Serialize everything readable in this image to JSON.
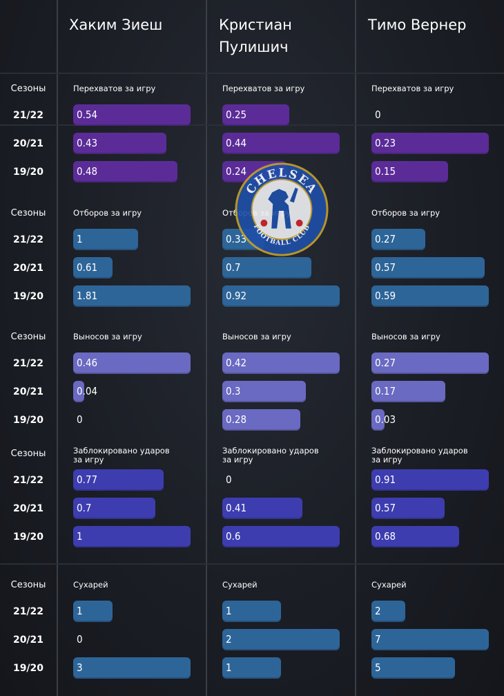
{
  "players": [
    {
      "name": "Хаким Зиеш"
    },
    {
      "name": "Кристиан\nПулишич"
    },
    {
      "name": "Тимо Вернер"
    }
  ],
  "season_label": "Сезоны",
  "logo": {
    "text_top": "CHELSEA",
    "text_bottom": "FOOTBALL CLUB"
  },
  "colors": {
    "interceptions": "#5b2c97",
    "tackles": "#2e6598",
    "clearances": "#6a6ac2",
    "blocks": "#3d3db0",
    "clean_sheets": "#2e6598"
  },
  "chart_data": {
    "type": "bar",
    "orientation": "horizontal",
    "categories": [
      "21/22",
      "20/21",
      "19/20"
    ],
    "metrics": [
      {
        "key": "interceptions",
        "title": "Перехватов за игру",
        "series": [
          {
            "name": "Хаким Зиеш",
            "values": [
              0.54,
              0.43,
              0.48
            ],
            "labels": [
              "0.54",
              "0.43",
              "0.48"
            ]
          },
          {
            "name": "Кристиан Пулишич",
            "values": [
              0.25,
              0.44,
              0.24
            ],
            "labels": [
              "0.25",
              "0.44",
              "0.24"
            ]
          },
          {
            "name": "Тимо Вернер",
            "values": [
              0,
              0.23,
              0.15
            ],
            "labels": [
              "0",
              "0.23",
              "0.15"
            ]
          }
        ]
      },
      {
        "key": "tackles",
        "title": "Отборов за игру",
        "series": [
          {
            "name": "Хаким Зиеш",
            "values": [
              1,
              0.61,
              1.81
            ],
            "labels": [
              "1",
              "0.61",
              "1.81"
            ]
          },
          {
            "name": "Кристиан Пулишич",
            "values": [
              0.33,
              0.7,
              0.92
            ],
            "labels": [
              "0.33",
              "0.7",
              "0.92"
            ]
          },
          {
            "name": "Тимо Вернер",
            "values": [
              0.27,
              0.57,
              0.59
            ],
            "labels": [
              "0.27",
              "0.57",
              "0.59"
            ]
          }
        ]
      },
      {
        "key": "clearances",
        "title": "Выносов за игру",
        "series": [
          {
            "name": "Хаким Зиеш",
            "values": [
              0.46,
              0.04,
              0
            ],
            "labels": [
              "0.46",
              "0.04",
              "0"
            ]
          },
          {
            "name": "Кристиан Пулишич",
            "values": [
              0.42,
              0.3,
              0.28
            ],
            "labels": [
              "0.42",
              "0.3",
              "0.28"
            ]
          },
          {
            "name": "Тимо Вернер",
            "values": [
              0.27,
              0.17,
              0.03
            ],
            "labels": [
              "0.27",
              "0.17",
              "0.03"
            ]
          }
        ]
      },
      {
        "key": "blocks",
        "title": "Заблокировано ударов\nза игру",
        "series": [
          {
            "name": "Хаким Зиеш",
            "values": [
              0.77,
              0.7,
              1
            ],
            "labels": [
              "0.77",
              "0.7",
              "1"
            ]
          },
          {
            "name": "Кристиан Пулишич",
            "values": [
              0,
              0.41,
              0.6
            ],
            "labels": [
              "0",
              "0.41",
              "0.6"
            ]
          },
          {
            "name": "Тимо Вернер",
            "values": [
              0.91,
              0.57,
              0.68
            ],
            "labels": [
              "0.91",
              "0.57",
              "0.68"
            ]
          }
        ]
      },
      {
        "key": "clean_sheets",
        "title": "Сухарей",
        "series": [
          {
            "name": "Хаким Зиеш",
            "values": [
              1,
              0,
              3
            ],
            "labels": [
              "1",
              "0",
              "3"
            ]
          },
          {
            "name": "Кристиан Пулишич",
            "values": [
              1,
              2,
              1
            ],
            "labels": [
              "1",
              "2",
              "1"
            ]
          },
          {
            "name": "Тимо Вернер",
            "values": [
              2,
              7,
              5
            ],
            "labels": [
              "2",
              "7",
              "5"
            ]
          }
        ]
      }
    ]
  }
}
